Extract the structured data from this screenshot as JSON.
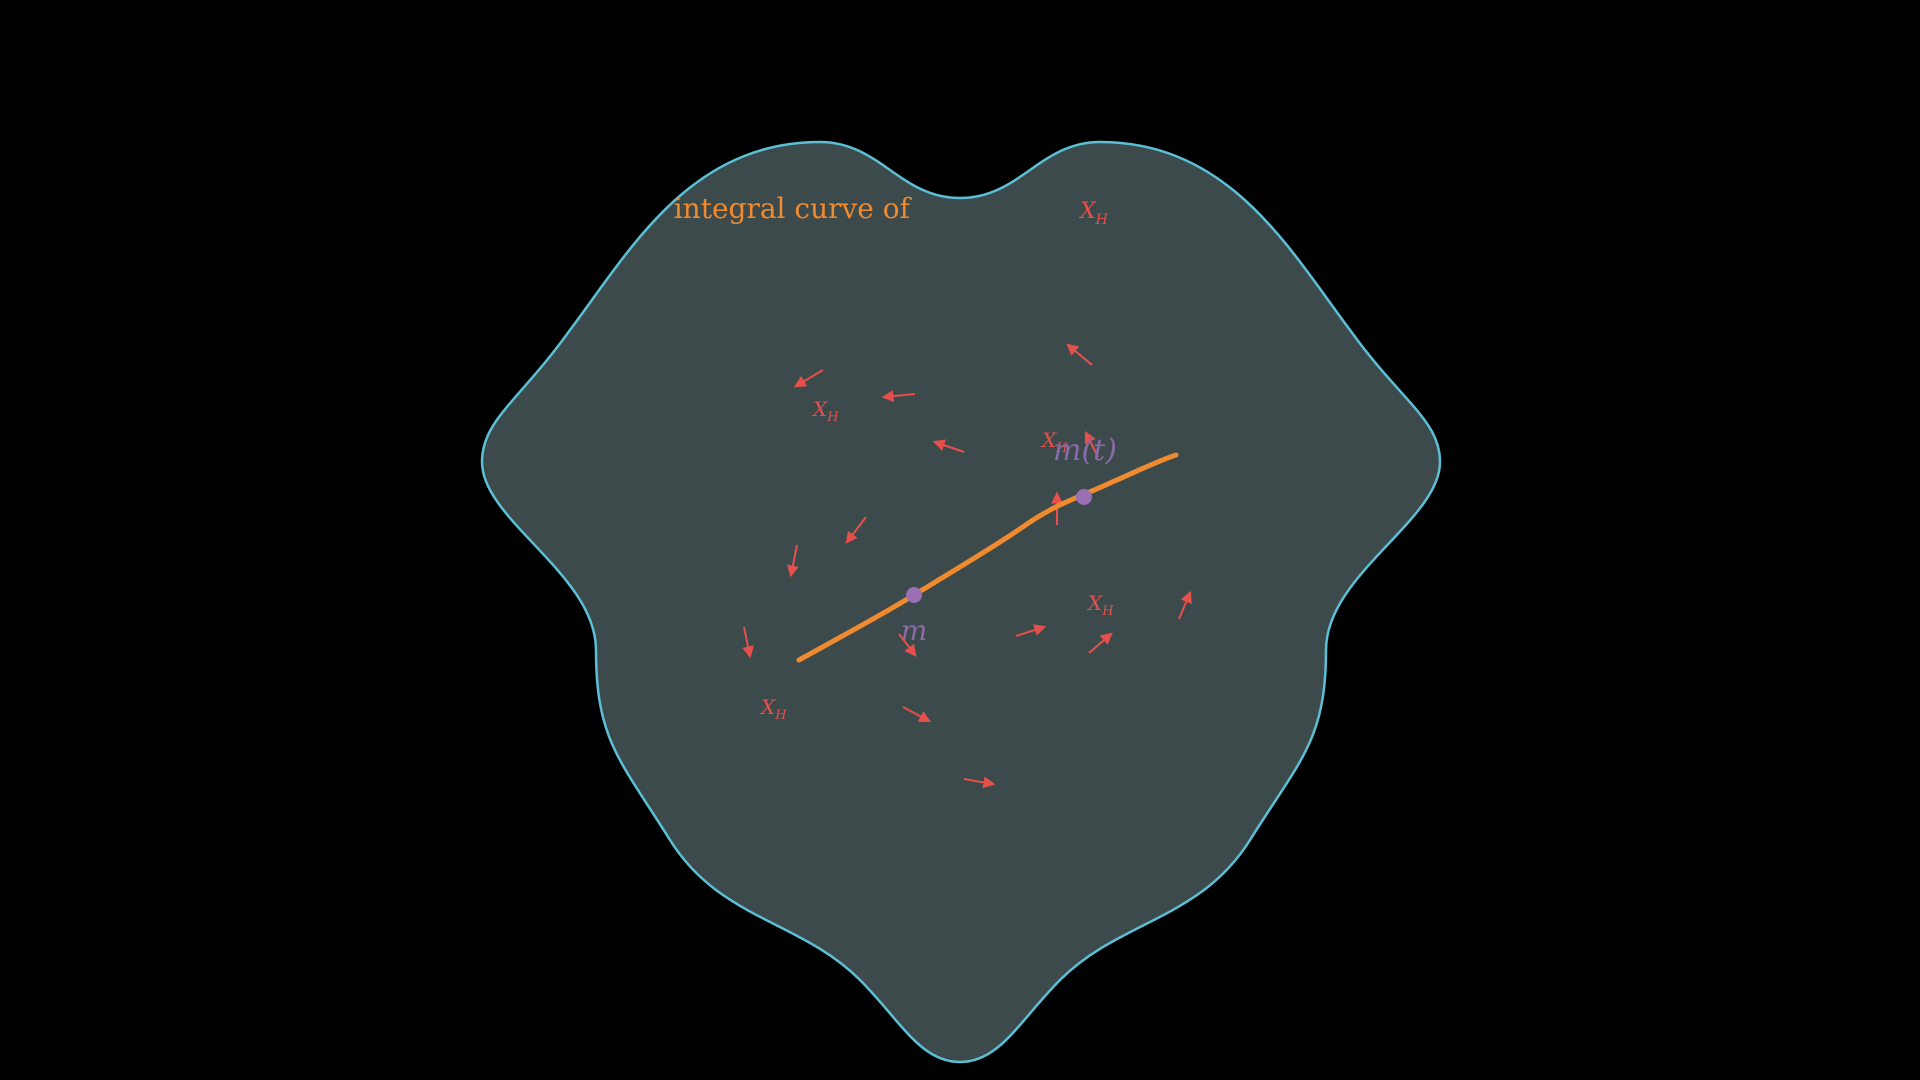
{
  "title": {
    "text": "integral curve of",
    "symbol": "X",
    "sub": "H"
  },
  "field_label": {
    "symbol": "X",
    "sub": "H"
  },
  "point_start": {
    "label": "m"
  },
  "point_flow": {
    "label": "m(t)"
  },
  "colors": {
    "background": "#000000",
    "manifold_fill": "#3d4a4c",
    "manifold_edge": "#5bc0d6",
    "curve": "#f08a2e",
    "vector": "#e5504c",
    "point": "#9a6fb3",
    "point_label": "#8a6aa8",
    "title": "#f08a2e"
  },
  "icons": {
    "vector_arrow": "arrow-icon",
    "point_marker": "dot-icon"
  }
}
